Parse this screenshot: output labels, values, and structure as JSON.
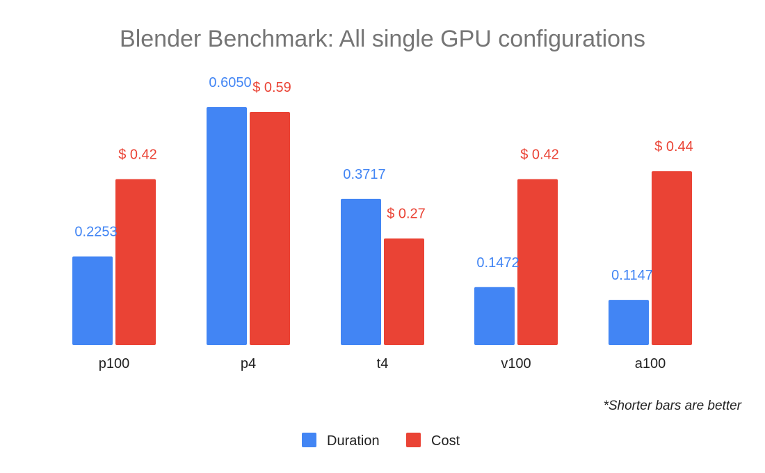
{
  "chart_data": {
    "type": "bar",
    "title": "Blender Benchmark: All single GPU configurations",
    "xlabel": "",
    "ylabel": "",
    "categories": [
      "p100",
      "p4",
      "t4",
      "v100",
      "a100"
    ],
    "series": [
      {
        "name": "Duration",
        "color": "#4285f4",
        "values": [
          0.2253,
          0.605,
          0.3717,
          0.1472,
          0.1147
        ],
        "labels": [
          "0.2253",
          "0.6050",
          "0.3717",
          "0.1472",
          "0.1147"
        ]
      },
      {
        "name": "Cost",
        "color": "#ea4335",
        "values": [
          0.42,
          0.59,
          0.27,
          0.42,
          0.44
        ],
        "labels": [
          "$ 0.42",
          "$ 0.59",
          "$ 0.27",
          "$ 0.42",
          "$ 0.44"
        ]
      }
    ],
    "grid": false,
    "legend": "bottom-center"
  },
  "note": "*Shorter bars are better"
}
